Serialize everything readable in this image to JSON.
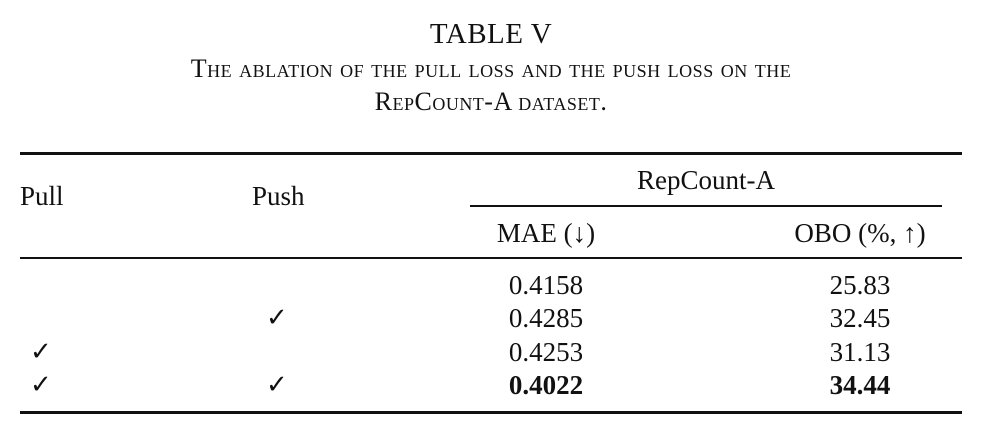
{
  "caption": {
    "label": "TABLE V",
    "line1": "The ablation of the pull loss and the push loss on the",
    "line2": "RepCount-A dataset."
  },
  "table": {
    "headers": {
      "pull": "Pull",
      "push": "Push",
      "group": "RepCount-A",
      "mae": "MAE (↓)",
      "obo": "OBO (%, ↑)"
    },
    "check_mark": "✓",
    "rows": [
      {
        "pull": "",
        "push": "",
        "mae": "0.4158",
        "obo": "25.83"
      },
      {
        "pull": "",
        "push": "✓",
        "mae": "0.4285",
        "obo": "32.45"
      },
      {
        "pull": "✓",
        "push": "",
        "mae": "0.4253",
        "obo": "31.13"
      },
      {
        "pull": "✓",
        "push": "✓",
        "mae": "0.4022",
        "obo": "34.44"
      }
    ]
  }
}
